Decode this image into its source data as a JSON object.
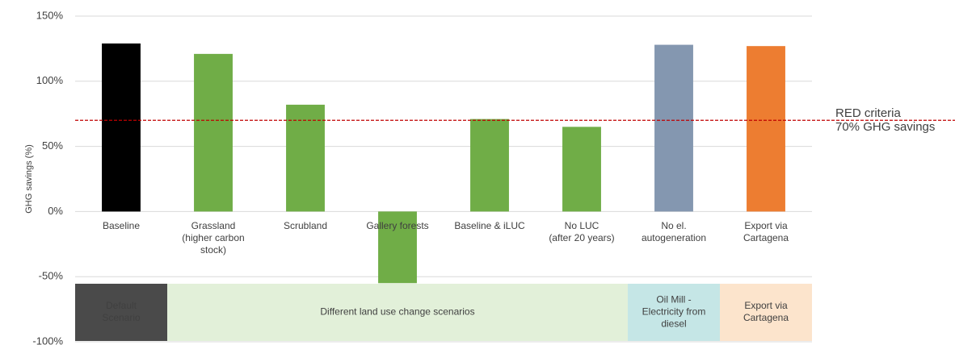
{
  "chart_data": {
    "type": "bar",
    "y_label": "GHG savings (%)",
    "categories": [
      [
        "Baseline"
      ],
      [
        "Grassland",
        "(higher carbon",
        "stock)"
      ],
      [
        "Scrubland"
      ],
      [
        "Gallery forests"
      ],
      [
        "Baseline & iLUC"
      ],
      [
        "No LUC",
        "(after 20 years)"
      ],
      [
        "No el.",
        "autogeneration"
      ],
      [
        "Export via",
        "Cartagena"
      ]
    ],
    "values": [
      129,
      121,
      82,
      -55,
      71,
      65,
      128,
      127
    ],
    "colors": [
      "#000000",
      "#70ad47",
      "#70ad47",
      "#70ad47",
      "#70ad47",
      "#70ad47",
      "#8497b0",
      "#ed7d31"
    ],
    "ylim": [
      -100,
      150
    ],
    "yticks": [
      {
        "value": -100,
        "label": "-100%"
      },
      {
        "value": -50,
        "label": "-50%"
      },
      {
        "value": 0,
        "label": "0%"
      },
      {
        "value": 50,
        "label": "50%"
      },
      {
        "value": 100,
        "label": "100%"
      },
      {
        "value": 150,
        "label": "150%"
      }
    ],
    "grid": true,
    "reference_line": {
      "value": 70,
      "color": "#c00000",
      "label": [
        "RED criteria",
        "70% GHG savings"
      ]
    },
    "groups": [
      {
        "label": [
          "Default",
          "Scenario"
        ],
        "color": "#4a4a4a",
        "text_color": "#ffffff"
      },
      {
        "label": [
          "Different land use change scenarios"
        ],
        "color": "#e2f0d9",
        "text_color": "#404040"
      },
      {
        "label": [
          "Oil Mill -",
          "Electricity from",
          "diesel"
        ],
        "color": "#c5e6e6",
        "text_color": "#404040"
      },
      {
        "label": [
          "Export via",
          "Cartagena"
        ],
        "color": "#fce4cc",
        "text_color": "#404040"
      }
    ]
  }
}
